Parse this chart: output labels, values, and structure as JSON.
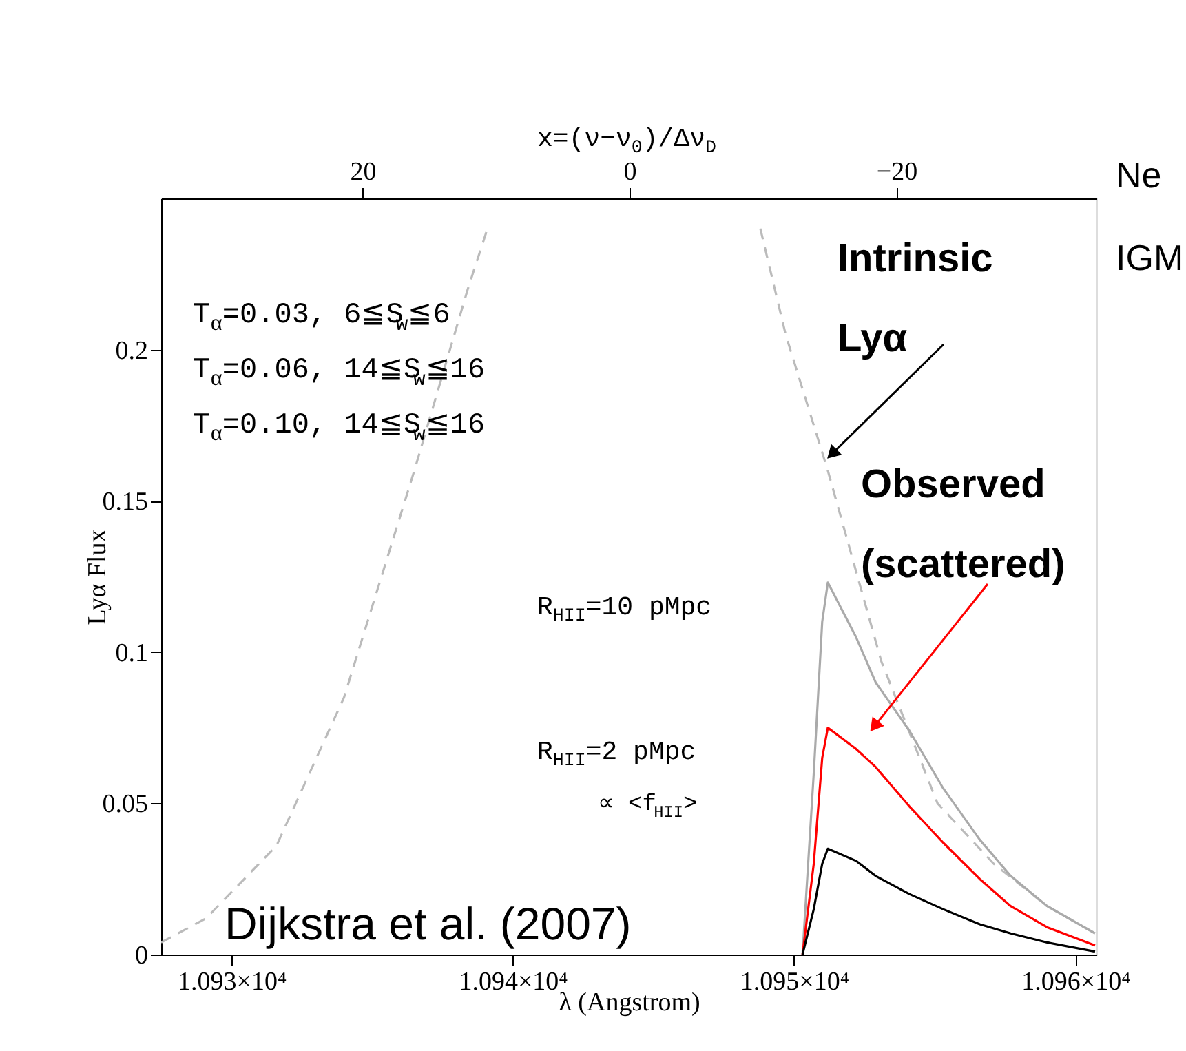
{
  "chart_data": {
    "type": "line",
    "xlabel": "λ (Angstrom)",
    "ylabel": "Lyα Flux",
    "x2label": "x=(ν−ν$_{0}$)/Δν$_{D}$",
    "xlim": [
      10927.5,
      10960.75
    ],
    "xticks": [
      {
        "value": 10930,
        "label": "1.093×10⁴"
      },
      {
        "value": 10940,
        "label": "1.094×10⁴"
      },
      {
        "value": 10950,
        "label": "1.095×10⁴"
      },
      {
        "value": 10960,
        "label": "1.096×10⁴"
      }
    ],
    "x2lim": [
      35.1,
      -35.0
    ],
    "x2ticks": [
      20,
      0,
      -20
    ],
    "ylim": [
      0,
      0.25
    ],
    "yticks": [
      0,
      0.05,
      0.1,
      0.15,
      0.2
    ],
    "grid": false,
    "marker": "none",
    "series": [
      {
        "color": "#bbbbbb",
        "line_style": "dashed",
        "x": [
          10927.5,
          10929.1,
          10931.6,
          10934.0,
          10936.5,
          10938.4,
          10939.1,
          10944.0,
          10948.8,
          10949.7,
          10951.2,
          10953.1,
          10955.1,
          10957.1,
          10959.0,
          10960.7
        ],
        "values": [
          0.004,
          0.012,
          0.036,
          0.085,
          0.16,
          0.22,
          0.24,
          null,
          0.24,
          0.205,
          0.16,
          0.097,
          0.05,
          0.03,
          0.016,
          0.007
        ]
      },
      {
        "color": "#aaaaaa",
        "line_style": "solid",
        "x": [
          10950.3,
          10950.7,
          10951.0,
          10951.2,
          10952.2,
          10952.9,
          10954.1,
          10955.3,
          10956.6,
          10957.7,
          10959.0,
          10960.7
        ],
        "values": [
          0,
          0.06,
          0.11,
          0.123,
          0.105,
          0.09,
          0.074,
          0.055,
          0.038,
          0.026,
          0.016,
          0.007
        ]
      },
      {
        "color": "#ff0000",
        "line_style": "solid",
        "x": [
          10950.3,
          10950.7,
          10951.0,
          10951.2,
          10952.2,
          10952.9,
          10954.1,
          10955.3,
          10956.6,
          10957.7,
          10959.0,
          10960.7
        ],
        "values": [
          0,
          0.03,
          0.065,
          0.075,
          0.068,
          0.062,
          0.049,
          0.037,
          0.025,
          0.016,
          0.009,
          0.003
        ]
      },
      {
        "color": "#000000",
        "line_style": "solid",
        "x": [
          10950.3,
          10950.7,
          10951.0,
          10951.2,
          10952.2,
          10952.9,
          10954.1,
          10955.3,
          10956.6,
          10957.7,
          10959.0,
          10960.7
        ],
        "values": [
          0,
          0.015,
          0.03,
          0.035,
          0.031,
          0.026,
          0.02,
          0.015,
          0.01,
          0.007,
          0.004,
          0.001
        ]
      }
    ],
    "annotations": [
      "T$_{α}$=0.03, 6≦S$_{w}$≦6",
      "T$_{α}$=0.06, 14≦S$_{w}$≦16",
      "T$_{α}$=0.10, 14≦S$_{w}$≦16",
      {
        "text": "Intrinsic Lyα",
        "x": 10951.4,
        "y": 0.166
      },
      {
        "text": "Observed (scattered)",
        "x": 10952.9,
        "y": 0.076
      },
      "R$_{HII}$=10 pMpc",
      "R$_{HII}$=2 pMpc",
      "∝ <f$_{HII}$>",
      "Dijkstra et al. (2007)",
      "Ne",
      "IGM"
    ]
  }
}
